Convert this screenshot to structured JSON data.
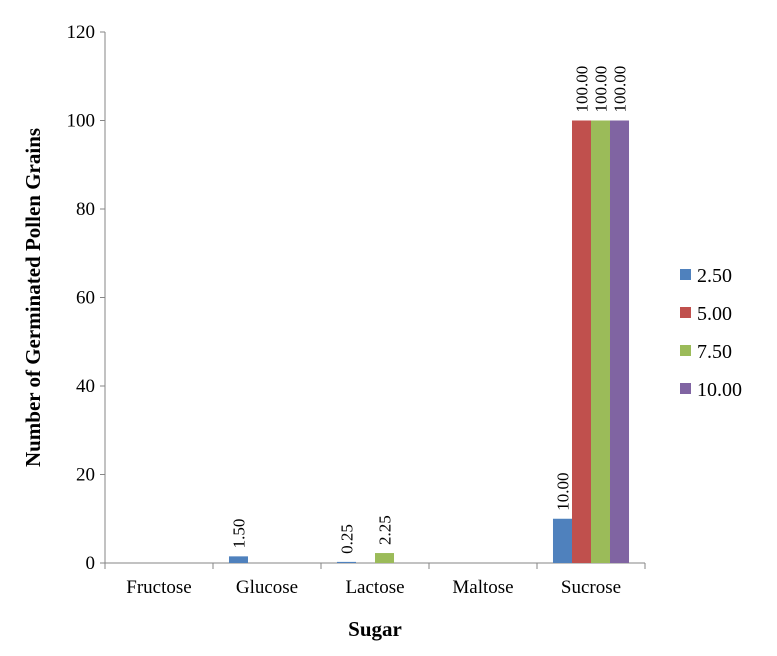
{
  "chart_data": {
    "type": "bar",
    "xlabel": "Sugar",
    "ylabel": "Number of Germinated Pollen Grains",
    "categories": [
      "Fructose",
      "Glucose",
      "Lactose",
      "Maltose",
      "Sucrose"
    ],
    "ylim": [
      0,
      120
    ],
    "yticks": [
      0,
      20,
      40,
      60,
      80,
      100,
      120
    ],
    "grid": false,
    "legend_position": "right",
    "series": [
      {
        "name": "2.50",
        "color": "#4F81BD",
        "values": [
          0,
          1.5,
          0.25,
          0,
          10
        ],
        "labels": [
          "",
          "1.50",
          "0.25",
          "",
          "10.00"
        ]
      },
      {
        "name": "5.00",
        "color": "#C0504D",
        "values": [
          0,
          0,
          0,
          0,
          100
        ],
        "labels": [
          "",
          "",
          "",
          "",
          "100.00"
        ]
      },
      {
        "name": "7.50",
        "color": "#9BBB59",
        "values": [
          0,
          0,
          2.25,
          0,
          100
        ],
        "labels": [
          "",
          "",
          "2.25",
          "",
          "100.00"
        ]
      },
      {
        "name": "10.00",
        "color": "#8064A2",
        "values": [
          0,
          0,
          0,
          0,
          100
        ],
        "labels": [
          "",
          "",
          "",
          "",
          "100.00"
        ]
      }
    ]
  }
}
